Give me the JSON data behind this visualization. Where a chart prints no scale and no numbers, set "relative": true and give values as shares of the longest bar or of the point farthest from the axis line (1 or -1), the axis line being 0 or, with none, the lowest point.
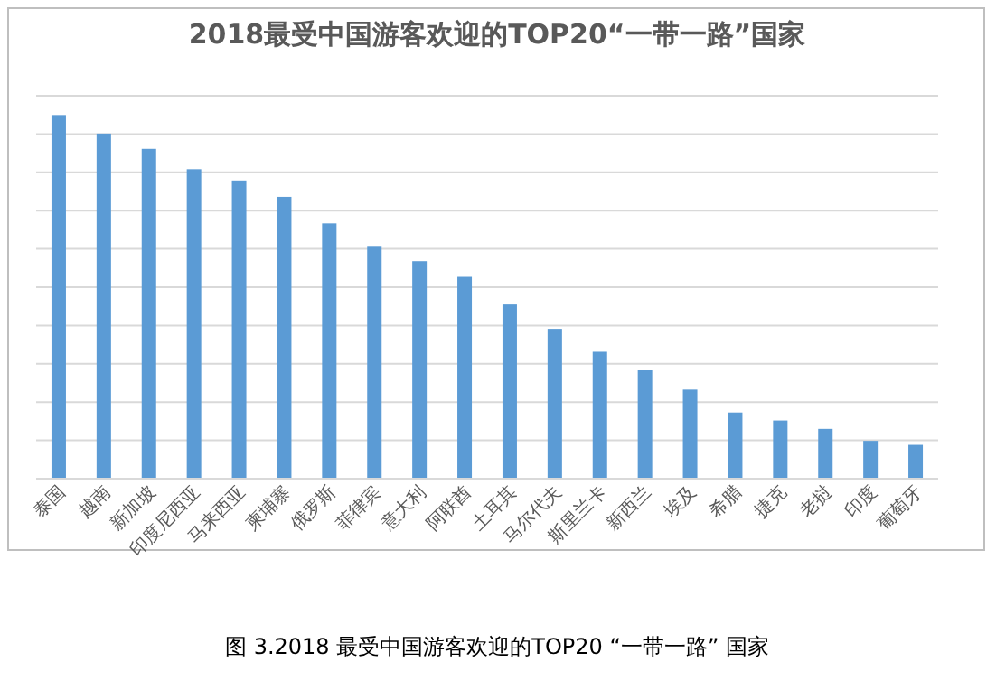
{
  "chart_data": {
    "type": "bar",
    "title": "2018最受中国游客欢迎的TOP20“一带一路”国家",
    "categories": [
      "泰国",
      "越南",
      "新加坡",
      "印度尼西亚",
      "马来西亚",
      "柬埔寨",
      "俄罗斯",
      "菲律宾",
      "意大利",
      "阿联酋",
      "土耳其",
      "马尔代夫",
      "斯里兰卡",
      "新西兰",
      "埃及",
      "希腊",
      "捷克",
      "老挝",
      "印度",
      "葡萄牙"
    ],
    "values": [
      1,
      0.949,
      0.907,
      0.851,
      0.82,
      0.775,
      0.702,
      0.64,
      0.598,
      0.555,
      0.479,
      0.412,
      0.349,
      0.298,
      0.245,
      0.182,
      0.16,
      0.137,
      0.104,
      0.093
    ],
    "color": "#5b9bd5",
    "relative": true,
    "grid": "y",
    "annotations": [
      "图 3.2018 最受中国游客欢迎的TOP20 “一带一路” 国家"
    ]
  }
}
